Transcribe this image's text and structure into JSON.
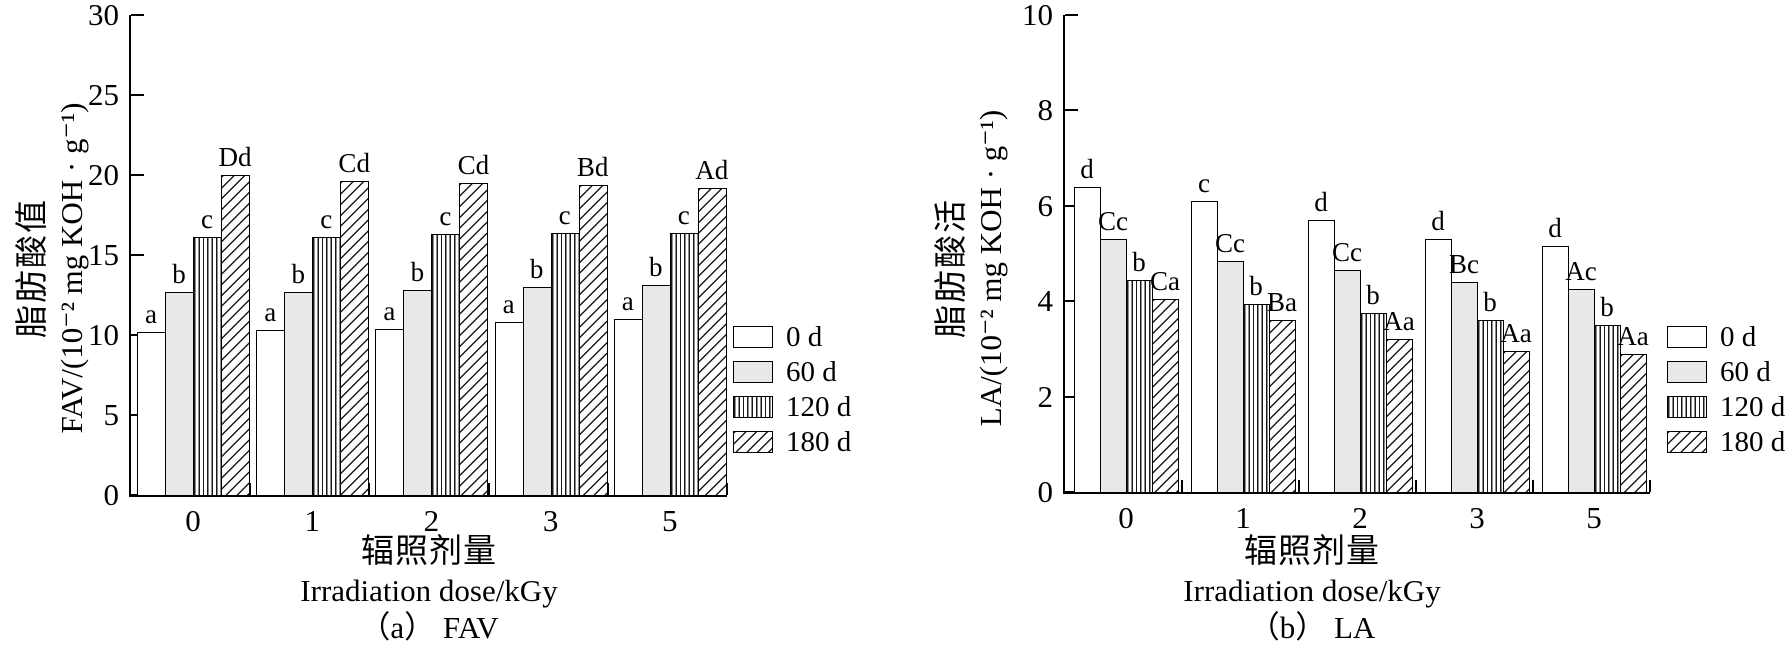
{
  "page": {
    "background": "#ffffff",
    "ink": "#000000",
    "gray_fill": "#e8e8e8"
  },
  "chart_data": [
    {
      "type": "bar",
      "panel_caption": "（a） FAV",
      "ylabel_line1": "脂肪酸值",
      "ylabel_line2": "FAV/(10⁻² mg KOH · g⁻¹)",
      "xlabel_line1": "辐照剂量",
      "xlabel_line2": "Irradiation dose/kGy",
      "categories": [
        "0",
        "1",
        "2",
        "3",
        "5"
      ],
      "ylim": [
        0,
        30
      ],
      "yticks": [
        "0",
        "5",
        "10",
        "15",
        "20",
        "25",
        "30"
      ],
      "grid": false,
      "legend_position": "right-center",
      "legend": [
        "0 d",
        "60 d",
        "120 d",
        "180 d"
      ],
      "series": [
        {
          "name": "0 d",
          "pattern": "white",
          "values": [
            10.2,
            10.3,
            10.4,
            10.8,
            11.0
          ],
          "letters": [
            "a",
            "a",
            "a",
            "a",
            "a"
          ]
        },
        {
          "name": "60 d",
          "pattern": "gray",
          "values": [
            12.7,
            12.7,
            12.8,
            13.0,
            13.1
          ],
          "letters": [
            "b",
            "b",
            "b",
            "b",
            "b"
          ]
        },
        {
          "name": "120 d",
          "pattern": "vertical-hatch",
          "values": [
            16.1,
            16.1,
            16.3,
            16.4,
            16.4
          ],
          "letters": [
            "c",
            "c",
            "c",
            "c",
            "c"
          ]
        },
        {
          "name": "180 d",
          "pattern": "diagonal-hatch",
          "values": [
            20.0,
            19.6,
            19.5,
            19.4,
            19.2
          ],
          "letters": [
            "Dd",
            "Cd",
            "Cd",
            "Bd",
            "Ad"
          ]
        }
      ]
    },
    {
      "type": "bar",
      "panel_caption": "（b） LA",
      "ylabel_line1": "脂肪酸活",
      "ylabel_line2": "LA/(10⁻² mg KOH · g⁻¹)",
      "xlabel_line1": "辐照剂量",
      "xlabel_line2": "Irradiation dose/kGy",
      "categories": [
        "0",
        "1",
        "2",
        "3",
        "5"
      ],
      "ylim": [
        0,
        10
      ],
      "yticks": [
        "0",
        "2",
        "4",
        "6",
        "8",
        "10"
      ],
      "grid": false,
      "legend_position": "right-center",
      "legend": [
        "0 d",
        "60 d",
        "120 d",
        "180 d"
      ],
      "series": [
        {
          "name": "0 d",
          "pattern": "white",
          "values": [
            6.4,
            6.1,
            5.7,
            5.3,
            5.15
          ],
          "letters": [
            "d",
            "c",
            "d",
            "d",
            "d"
          ]
        },
        {
          "name": "60 d",
          "pattern": "gray",
          "values": [
            5.3,
            4.85,
            4.65,
            4.4,
            4.25
          ],
          "letters": [
            "Cc",
            "Cc",
            "Cc",
            "Bc",
            "Ac"
          ]
        },
        {
          "name": "120 d",
          "pattern": "vertical-hatch",
          "values": [
            4.45,
            3.95,
            3.75,
            3.6,
            3.5
          ],
          "letters": [
            "b",
            "b",
            "b",
            "b",
            "b"
          ]
        },
        {
          "name": "180 d",
          "pattern": "diagonal-hatch",
          "values": [
            4.05,
            3.6,
            3.2,
            2.95,
            2.9
          ],
          "letters": [
            "Ca",
            "Ba",
            "Aa",
            "Aa",
            "Aa"
          ]
        }
      ]
    }
  ]
}
